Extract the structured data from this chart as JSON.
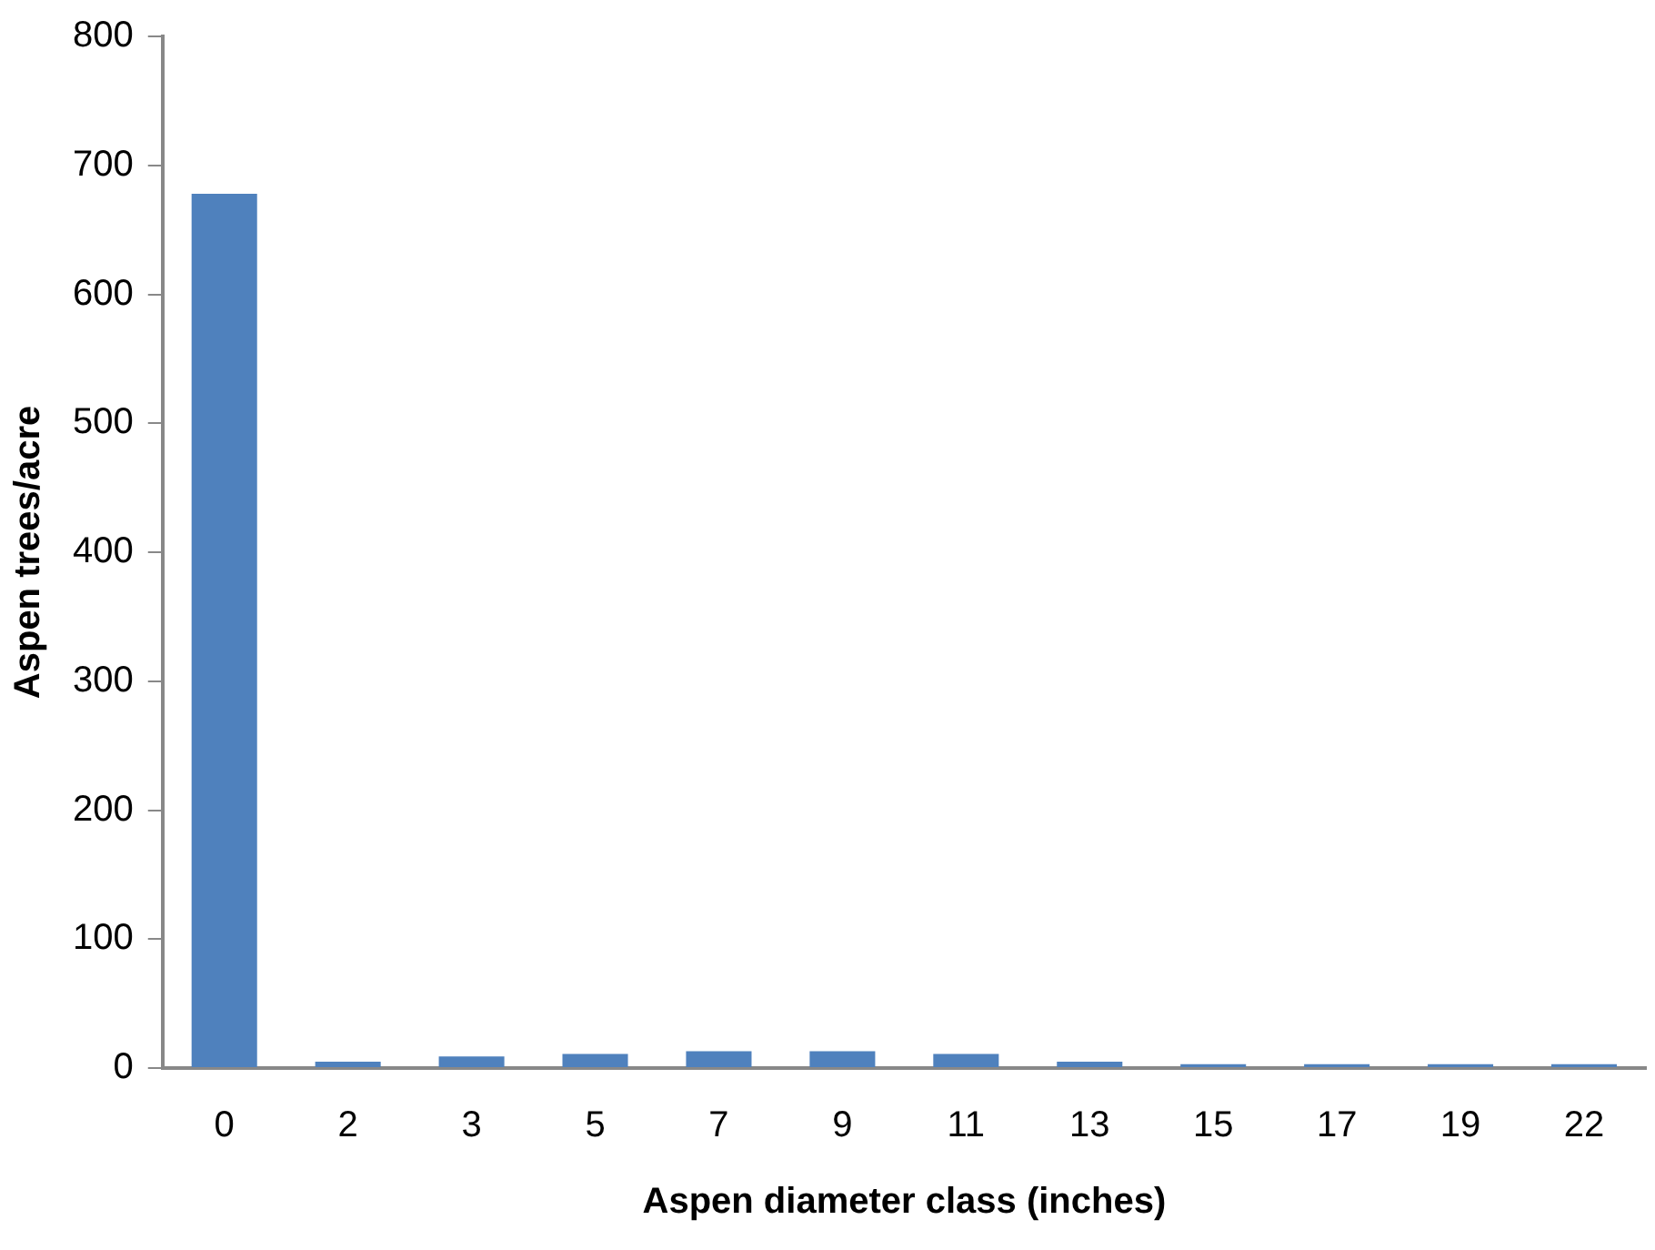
{
  "chart_data": {
    "type": "bar",
    "xlabel": "Aspen diameter class (inches)",
    "ylabel": "Aspen trees/acre",
    "categories": [
      "0",
      "2",
      "3",
      "5",
      "7",
      "9",
      "11",
      "13",
      "15",
      "17",
      "19",
      "22"
    ],
    "values": [
      678,
      5,
      9,
      11,
      13,
      13,
      11,
      5,
      3,
      3,
      3,
      3
    ],
    "color": "#4f81bd",
    "ylim": [
      0,
      800
    ],
    "yticks": [
      0,
      100,
      200,
      300,
      400,
      500,
      600,
      700,
      800
    ],
    "grid": false,
    "legend": false
  }
}
